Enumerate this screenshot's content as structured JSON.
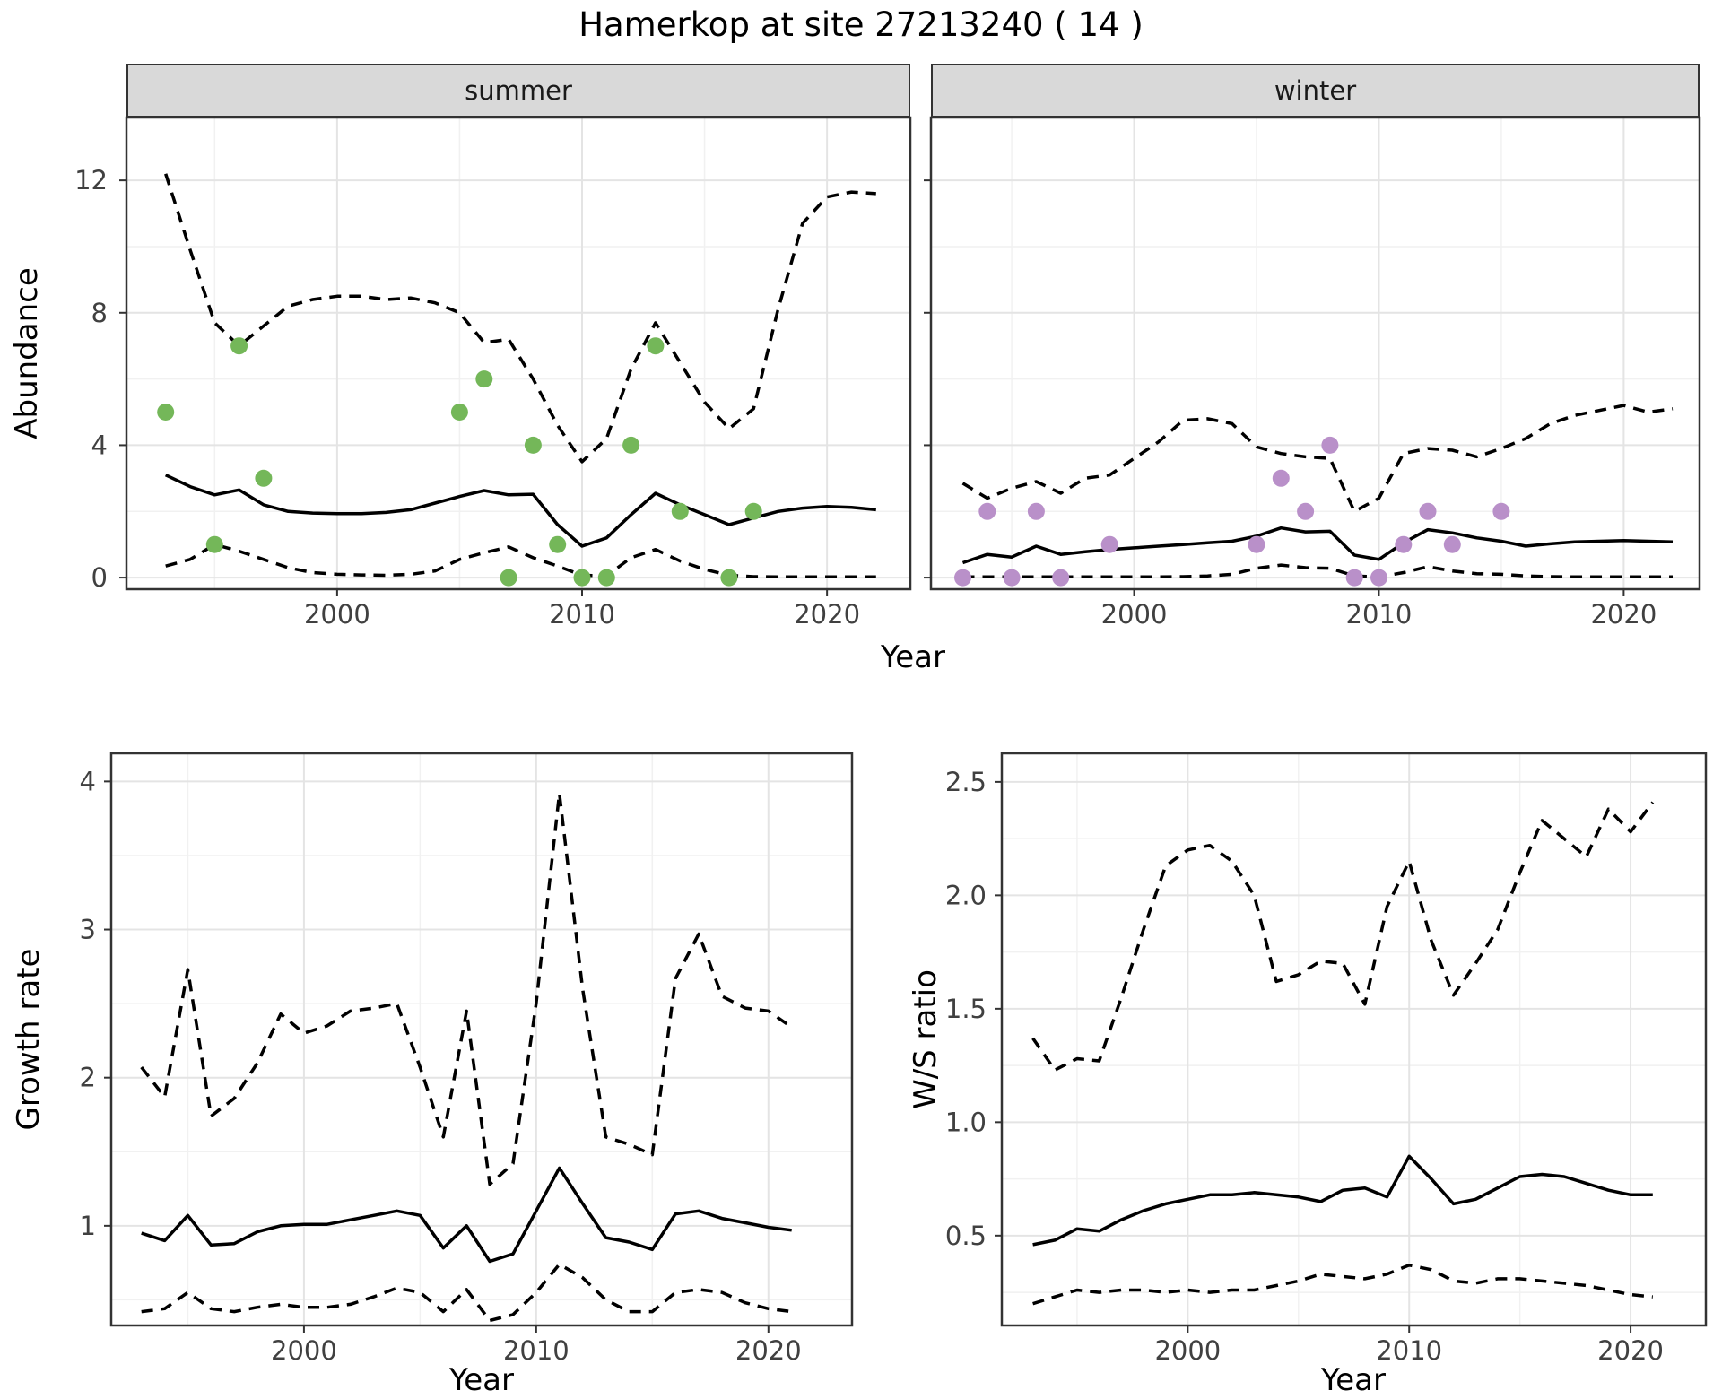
{
  "title": "Hamerkop at site 27213240 ( 14 )",
  "colors": {
    "summer_point": "#74b759",
    "winter_point": "#b990c9",
    "line": "#000000",
    "grid_major": "#e4e4e4",
    "grid_minor": "#f1f1f1",
    "panel_border": "#333333",
    "strip_bg": "#d9d9d9",
    "tick_label": "#404040"
  },
  "chart_data": [
    {
      "id": "abundance_summer",
      "type": "line",
      "facet_label": "summer",
      "ylabel": "Abundance",
      "xlabel": "Year",
      "xlim": [
        1991.4,
        2023.4
      ],
      "ylim": [
        -0.35,
        13.9
      ],
      "xticks": [
        2000,
        2010,
        2020
      ],
      "xminor": [
        1995,
        2005,
        2015
      ],
      "ytick_values": [
        0,
        4,
        8,
        12
      ],
      "ytick_labels": [
        "0",
        "4",
        "8",
        "12"
      ],
      "yminor": [
        2,
        6,
        10
      ],
      "grid": true,
      "legend": "none",
      "years": [
        1993,
        1994,
        1995,
        1996,
        1997,
        1998,
        1999,
        2000,
        2001,
        2002,
        2003,
        2004,
        2005,
        2006,
        2007,
        2008,
        2009,
        2010,
        2011,
        2012,
        2013,
        2014,
        2015,
        2016,
        2017,
        2018,
        2019,
        2020,
        2021,
        2022
      ],
      "series": [
        {
          "name": "mean",
          "style": "solid",
          "values": [
            3.1,
            2.75,
            2.5,
            2.65,
            2.2,
            2.0,
            1.95,
            1.93,
            1.93,
            1.97,
            2.05,
            2.25,
            2.45,
            2.63,
            2.5,
            2.52,
            1.6,
            0.95,
            1.2,
            1.9,
            2.55,
            2.2,
            1.9,
            1.6,
            1.8,
            2.0,
            2.1,
            2.15,
            2.12,
            2.05
          ]
        },
        {
          "name": "upper_ci",
          "style": "dashed",
          "values": [
            12.2,
            9.9,
            7.7,
            7.0,
            7.6,
            8.2,
            8.4,
            8.5,
            8.5,
            8.4,
            8.45,
            8.3,
            8.0,
            7.1,
            7.2,
            6.0,
            4.6,
            3.5,
            4.2,
            6.3,
            7.7,
            6.5,
            5.3,
            4.5,
            5.1,
            8.1,
            10.7,
            11.5,
            11.65,
            11.6
          ]
        },
        {
          "name": "lower_ci",
          "style": "dashed",
          "values": [
            0.35,
            0.55,
            1.0,
            0.8,
            0.55,
            0.3,
            0.15,
            0.1,
            0.08,
            0.07,
            0.1,
            0.2,
            0.55,
            0.75,
            0.93,
            0.6,
            0.35,
            0.07,
            0.05,
            0.6,
            0.85,
            0.5,
            0.25,
            0.07,
            0.03,
            0.02,
            0.02,
            0.02,
            0.02,
            0.02
          ]
        }
      ],
      "observations": {
        "years": [
          1993,
          1995,
          1996,
          1997,
          2005,
          2006,
          2007,
          2008,
          2009,
          2010,
          2011,
          2012,
          2013,
          2014,
          2016,
          2017
        ],
        "values": [
          5,
          1,
          7,
          3,
          5,
          6,
          0,
          4,
          1,
          0,
          0,
          4,
          7,
          2,
          0,
          2
        ]
      },
      "point_color": "#74b759"
    },
    {
      "id": "abundance_winter",
      "type": "line",
      "facet_label": "winter",
      "ylabel": "Abundance",
      "xlabel": "Year",
      "xlim": [
        1991.7,
        2023.1
      ],
      "ylim": [
        -0.35,
        13.9
      ],
      "xticks": [
        2000,
        2010,
        2020
      ],
      "xminor": [
        1995,
        2005,
        2015
      ],
      "ytick_values": [
        0,
        4,
        8,
        12
      ],
      "ytick_labels": [
        "0",
        "4",
        "8",
        "12"
      ],
      "yminor": [
        2,
        6,
        10
      ],
      "grid": true,
      "legend": "none",
      "years": [
        1993,
        1994,
        1995,
        1996,
        1997,
        1998,
        1999,
        2000,
        2001,
        2002,
        2003,
        2004,
        2005,
        2006,
        2007,
        2008,
        2009,
        2010,
        2011,
        2012,
        2013,
        2014,
        2015,
        2016,
        2017,
        2018,
        2019,
        2020,
        2021,
        2022
      ],
      "series": [
        {
          "name": "mean",
          "style": "solid",
          "values": [
            0.45,
            0.7,
            0.62,
            0.95,
            0.7,
            0.78,
            0.85,
            0.9,
            0.95,
            1.0,
            1.05,
            1.1,
            1.25,
            1.5,
            1.38,
            1.4,
            0.68,
            0.55,
            1.05,
            1.45,
            1.35,
            1.2,
            1.1,
            0.95,
            1.02,
            1.08,
            1.1,
            1.12,
            1.1,
            1.08
          ]
        },
        {
          "name": "upper_ci",
          "style": "dashed",
          "values": [
            2.85,
            2.4,
            2.7,
            2.9,
            2.55,
            3.0,
            3.1,
            3.6,
            4.1,
            4.75,
            4.8,
            4.65,
            3.95,
            3.75,
            3.65,
            3.6,
            2.0,
            2.4,
            3.75,
            3.9,
            3.85,
            3.65,
            3.9,
            4.2,
            4.65,
            4.9,
            5.05,
            5.2,
            5.0,
            5.1
          ]
        },
        {
          "name": "lower_ci",
          "style": "dashed",
          "values": [
            0.02,
            0.02,
            0.02,
            0.02,
            0.02,
            0.02,
            0.02,
            0.02,
            0.02,
            0.03,
            0.05,
            0.1,
            0.28,
            0.38,
            0.3,
            0.28,
            0.05,
            0.02,
            0.15,
            0.33,
            0.2,
            0.12,
            0.1,
            0.05,
            0.03,
            0.02,
            0.02,
            0.02,
            0.02,
            0.02
          ]
        }
      ],
      "observations": {
        "years": [
          1993,
          1994,
          1995,
          1996,
          1997,
          1999,
          2005,
          2006,
          2007,
          2008,
          2009,
          2010,
          2011,
          2012,
          2013,
          2015
        ],
        "values": [
          0,
          2,
          0,
          2,
          0,
          1,
          1,
          3,
          2,
          4,
          0,
          0,
          1,
          2,
          1,
          2
        ]
      },
      "point_color": "#b990c9"
    },
    {
      "id": "growth_rate",
      "type": "line",
      "facet_label": "",
      "ylabel": "Growth rate",
      "xlabel": "Year",
      "xlim": [
        1991.7,
        2023.6
      ],
      "ylim": [
        0.327,
        4.19
      ],
      "xticks": [
        2000,
        2010,
        2020
      ],
      "xminor": [
        1995,
        2005,
        2015
      ],
      "ytick_values": [
        1,
        2,
        3,
        4
      ],
      "ytick_labels": [
        "1",
        "2",
        "3",
        "4"
      ],
      "yminor": [
        0.5,
        1.5,
        2.5,
        3.5
      ],
      "grid": true,
      "legend": "none",
      "years": [
        1993,
        1994,
        1995,
        1996,
        1997,
        1998,
        1999,
        2000,
        2001,
        2002,
        2003,
        2004,
        2005,
        2006,
        2007,
        2008,
        2009,
        2010,
        2011,
        2012,
        2013,
        2014,
        2015,
        2016,
        2017,
        2018,
        2019,
        2020,
        2021
      ],
      "series": [
        {
          "name": "mean",
          "style": "solid",
          "values": [
            0.95,
            0.9,
            1.07,
            0.87,
            0.88,
            0.96,
            1.0,
            1.01,
            1.01,
            1.04,
            1.07,
            1.1,
            1.07,
            0.85,
            1.0,
            0.76,
            0.81,
            1.1,
            1.39,
            1.15,
            0.92,
            0.89,
            0.84,
            1.08,
            1.1,
            1.05,
            1.02,
            0.99,
            0.97
          ]
        },
        {
          "name": "upper_ci",
          "style": "dashed",
          "values": [
            2.07,
            1.87,
            2.73,
            1.74,
            1.86,
            2.1,
            2.43,
            2.3,
            2.35,
            2.45,
            2.47,
            2.5,
            2.07,
            1.6,
            2.45,
            1.28,
            1.42,
            2.5,
            3.92,
            2.6,
            1.6,
            1.55,
            1.48,
            2.67,
            2.97,
            2.55,
            2.47,
            2.45,
            2.34
          ]
        },
        {
          "name": "lower_ci",
          "style": "dashed",
          "values": [
            0.42,
            0.44,
            0.55,
            0.44,
            0.42,
            0.45,
            0.47,
            0.45,
            0.45,
            0.47,
            0.52,
            0.58,
            0.55,
            0.42,
            0.57,
            0.36,
            0.4,
            0.55,
            0.74,
            0.65,
            0.5,
            0.42,
            0.42,
            0.55,
            0.57,
            0.55,
            0.48,
            0.44,
            0.42
          ]
        }
      ],
      "observations": {
        "years": [],
        "values": []
      },
      "point_color": "#000000"
    },
    {
      "id": "ws_ratio",
      "type": "line",
      "facet_label": "",
      "ylabel": "W/S ratio",
      "xlabel": "Year",
      "xlim": [
        1991.6,
        2023.4
      ],
      "ylim": [
        0.104,
        2.626
      ],
      "xticks": [
        2000,
        2010,
        2020
      ],
      "xminor": [
        1995,
        2005,
        2015
      ],
      "ytick_values": [
        0.5,
        1.0,
        1.5,
        2.0,
        2.5
      ],
      "ytick_labels": [
        "0.5",
        "1.0",
        "1.5",
        "2.0",
        "2.5"
      ],
      "yminor": [
        0.25,
        0.75,
        1.25,
        1.75,
        2.25
      ],
      "grid": true,
      "legend": "none",
      "years": [
        1993,
        1994,
        1995,
        1996,
        1997,
        1998,
        1999,
        2000,
        2001,
        2002,
        2003,
        2004,
        2005,
        2006,
        2007,
        2008,
        2009,
        2010,
        2011,
        2012,
        2013,
        2014,
        2015,
        2016,
        2017,
        2018,
        2019,
        2020,
        2021
      ],
      "series": [
        {
          "name": "mean",
          "style": "solid",
          "values": [
            0.46,
            0.48,
            0.53,
            0.52,
            0.57,
            0.61,
            0.64,
            0.66,
            0.68,
            0.68,
            0.69,
            0.68,
            0.67,
            0.65,
            0.7,
            0.71,
            0.67,
            0.85,
            0.75,
            0.64,
            0.66,
            0.71,
            0.76,
            0.77,
            0.76,
            0.73,
            0.7,
            0.68,
            0.68
          ]
        },
        {
          "name": "upper_ci",
          "style": "dashed",
          "values": [
            1.37,
            1.23,
            1.28,
            1.27,
            1.55,
            1.85,
            2.13,
            2.2,
            2.22,
            2.15,
            2.0,
            1.62,
            1.65,
            1.71,
            1.7,
            1.52,
            1.95,
            2.15,
            1.8,
            1.56,
            1.7,
            1.85,
            2.1,
            2.33,
            2.25,
            2.17,
            2.38,
            2.28,
            2.41
          ]
        },
        {
          "name": "lower_ci",
          "style": "dashed",
          "values": [
            0.2,
            0.23,
            0.26,
            0.25,
            0.26,
            0.26,
            0.25,
            0.26,
            0.25,
            0.26,
            0.26,
            0.28,
            0.3,
            0.33,
            0.32,
            0.31,
            0.33,
            0.37,
            0.35,
            0.3,
            0.29,
            0.31,
            0.31,
            0.3,
            0.29,
            0.28,
            0.26,
            0.24,
            0.23
          ]
        }
      ],
      "observations": {
        "years": [],
        "values": []
      },
      "point_color": "#000000"
    }
  ]
}
